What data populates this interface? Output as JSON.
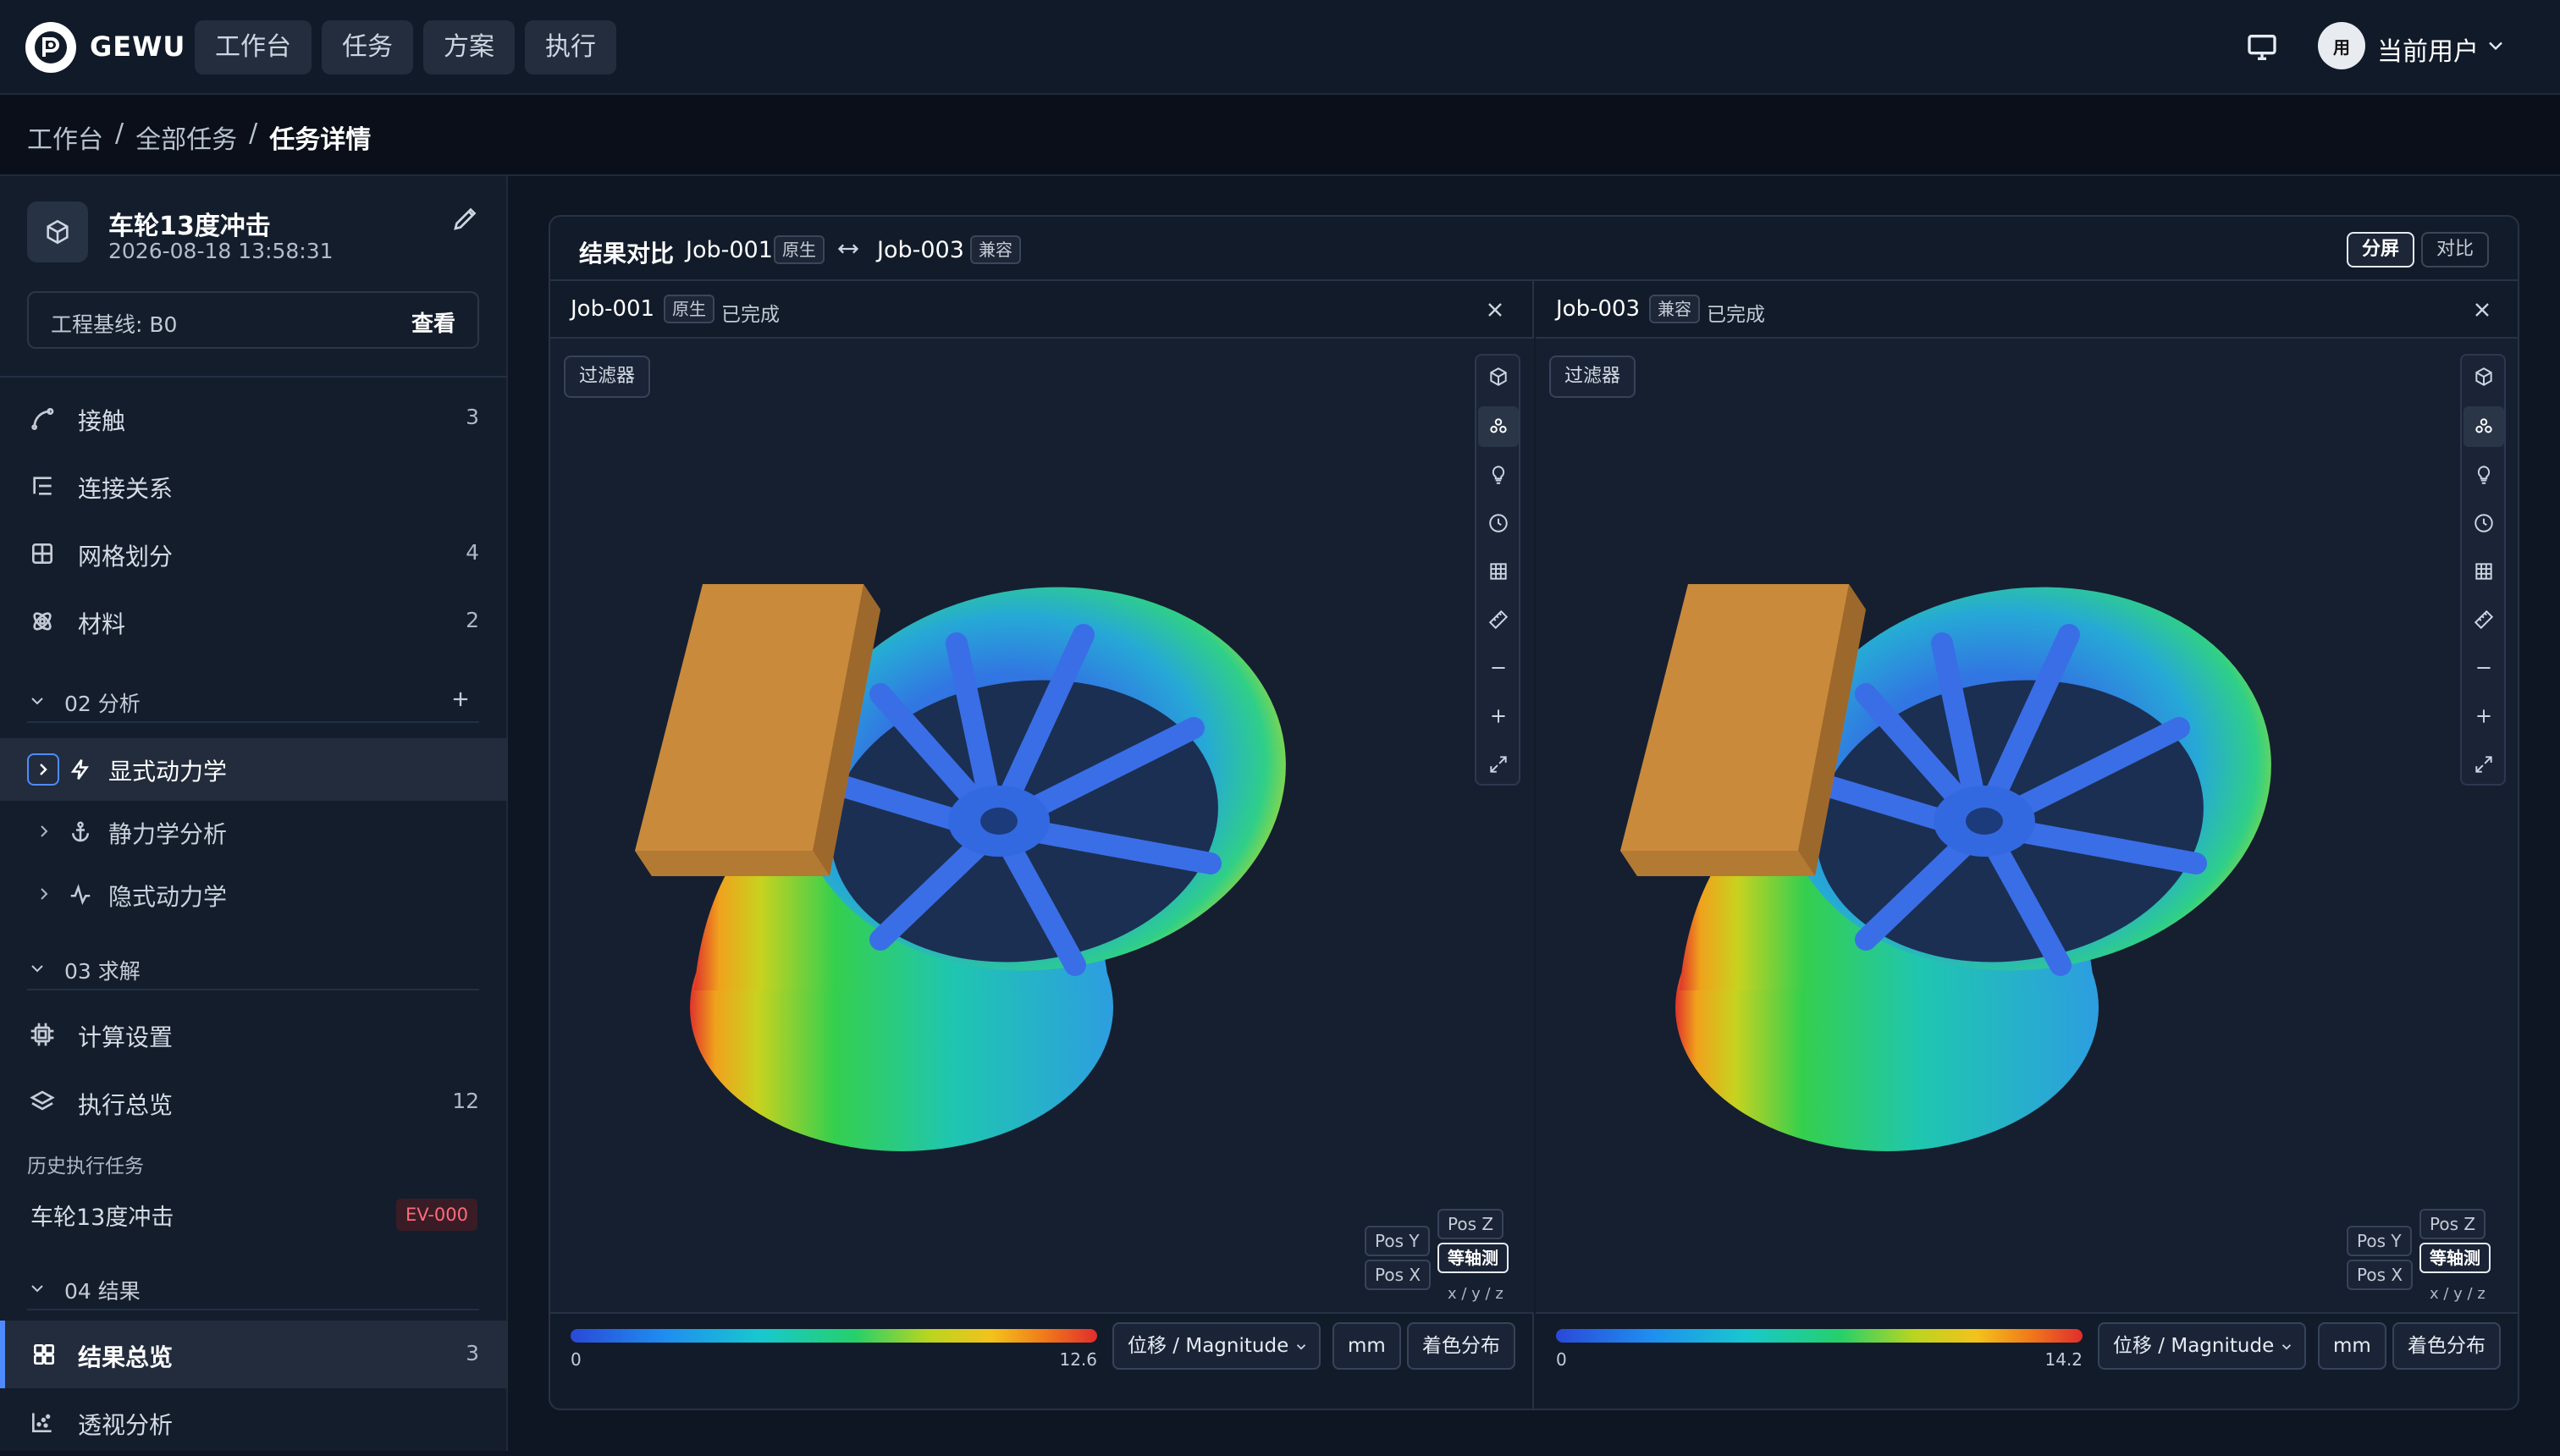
{
  "brand": "GEWU",
  "nav": [
    "工作台",
    "任务",
    "方案",
    "执行"
  ],
  "user": {
    "avatar": "用",
    "name": "当前用户"
  },
  "breadcrumb": [
    "工作台",
    "/",
    "全部任务",
    "/",
    "任务详情"
  ],
  "project": {
    "title": "车轮13度冲击",
    "time": "2026-08-18 13:58:31",
    "baseline_label": "工程基线: B0",
    "baseline_action": "查看"
  },
  "sidebar": {
    "items1": [
      {
        "label": "接触",
        "count": "3"
      },
      {
        "label": "连接关系",
        "count": ""
      },
      {
        "label": "网格划分",
        "count": "4"
      },
      {
        "label": "材料",
        "count": "2"
      }
    ],
    "sec_analysis": "02 分析",
    "analysis": [
      {
        "label": "显式动力学"
      },
      {
        "label": "静力学分析"
      },
      {
        "label": "隐式动力学"
      }
    ],
    "sec_solve": "03 求解",
    "solve": [
      {
        "label": "计算设置",
        "count": ""
      },
      {
        "label": "执行总览",
        "count": "12"
      }
    ],
    "history_title": "历史执行任务",
    "history": {
      "label": "车轮13度冲击",
      "tag": "EV-000"
    },
    "sec_result": "04 结果",
    "result": [
      {
        "label": "结果总览",
        "count": "3"
      },
      {
        "label": "透视分析",
        "count": ""
      }
    ]
  },
  "panel": {
    "title": "结果对比",
    "job_a": "Job-001",
    "tag_a": "原生",
    "job_b": "Job-003",
    "tag_b": "兼容",
    "seg": [
      "分屏",
      "对比"
    ]
  },
  "viewports": [
    {
      "job": "Job-001",
      "tag": "原生",
      "status": "已完成",
      "filter": "过滤器",
      "axis": {
        "z": "Pos Z",
        "y": "Pos Y",
        "iso": "等轴测",
        "x": "Pos X",
        "xyz": "x / y / z"
      },
      "min": "0",
      "max": "12.6",
      "field": "位移 / Magnitude",
      "unit": "mm",
      "mode": "着色分布"
    },
    {
      "job": "Job-003",
      "tag": "兼容",
      "status": "已完成",
      "filter": "过滤器",
      "axis": {
        "z": "Pos Z",
        "y": "Pos Y",
        "iso": "等轴测",
        "x": "Pos X",
        "xyz": "x / y / z"
      },
      "min": "0",
      "max": "14.2",
      "field": "位移 / Magnitude",
      "unit": "mm",
      "mode": "着色分布"
    }
  ],
  "colors": {
    "accent": "#4f8bff",
    "block": "#c98a3c",
    "danger": "#ff6b7a"
  }
}
